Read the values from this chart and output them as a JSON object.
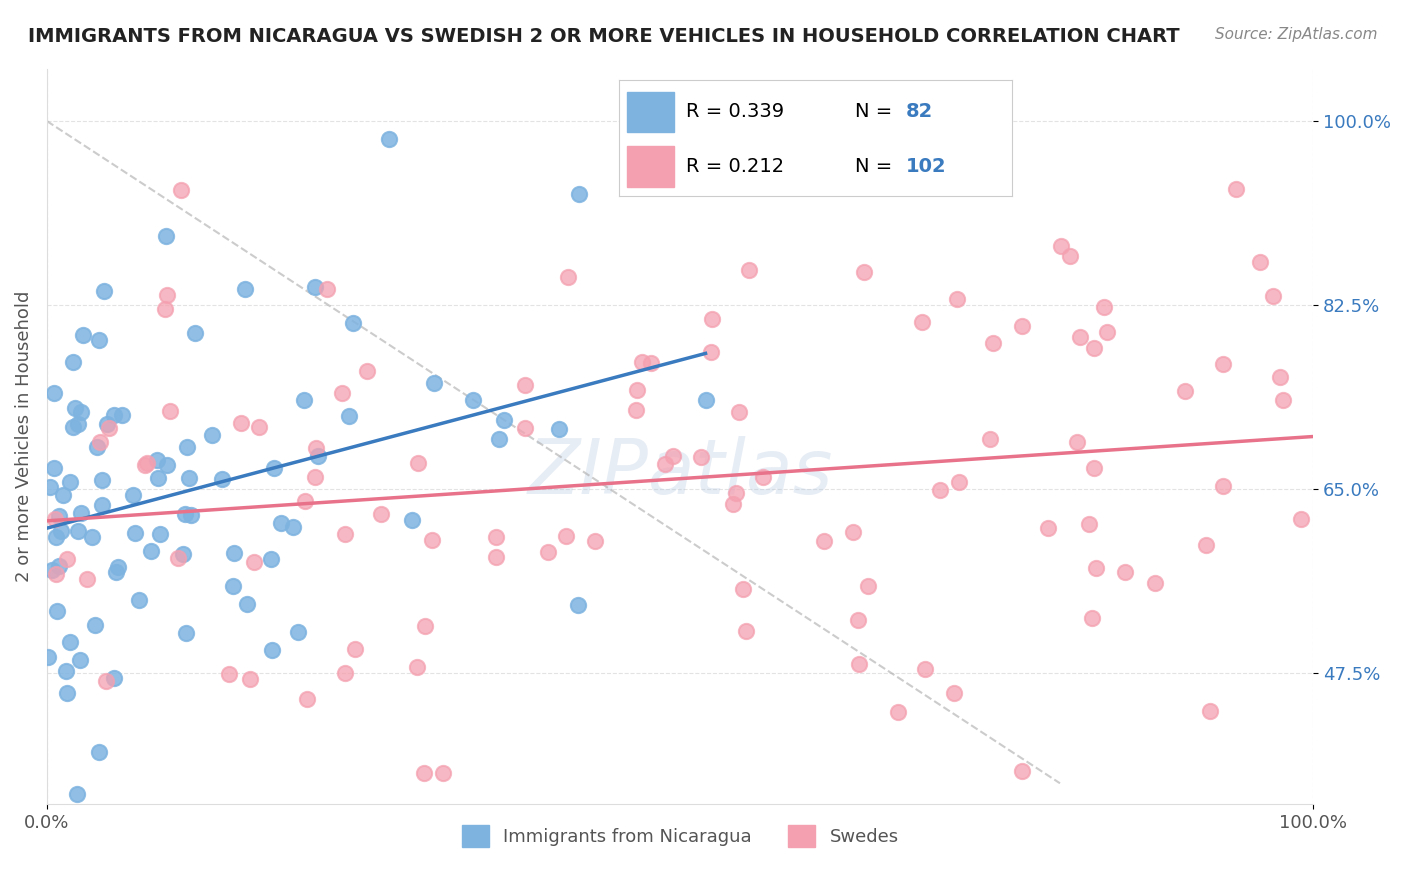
{
  "title": "IMMIGRANTS FROM NICARAGUA VS SWEDISH 2 OR MORE VEHICLES IN HOUSEHOLD CORRELATION CHART",
  "source": "Source: ZipAtlas.com",
  "xlabel": "",
  "ylabel": "2 or more Vehicles in Household",
  "legend_labels": [
    "Immigrants from Nicaragua",
    "Swedes"
  ],
  "r_values": [
    0.339,
    0.212
  ],
  "n_values": [
    82,
    102
  ],
  "series_colors": [
    "#7eb3e0",
    "#f4a0b0"
  ],
  "trend_colors": [
    "#3a7abf",
    "#e8728a"
  ],
  "xmin": 0.0,
  "xmax": 100.0,
  "ymin": 35.0,
  "ymax": 105.0,
  "ytick_labels": [
    "47.5%",
    "65.0%",
    "82.5%",
    "100.0%"
  ],
  "ytick_values": [
    47.5,
    65.0,
    82.5,
    100.0
  ],
  "xtick_labels": [
    "0.0%",
    "100.0%"
  ],
  "xtick_values": [
    0.0,
    100.0
  ],
  "watermark": "ZIPatlas",
  "background_color": "#ffffff",
  "grid_color": "#dddddd",
  "title_color": "#222222"
}
